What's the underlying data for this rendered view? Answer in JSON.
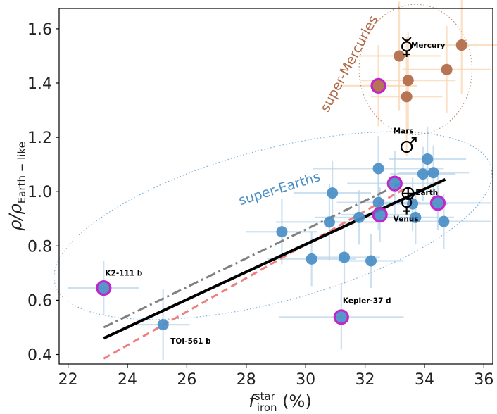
{
  "chart_data": {
    "type": "scatter",
    "xlabel_main": "f",
    "xlabel_sub": "iron",
    "xlabel_sup": "star",
    "xlabel_unit": " (%)",
    "ylabel_main": "ρ/ρ",
    "ylabel_sub": "Earth − like",
    "xlim": [
      21.7,
      36.3
    ],
    "ylim": [
      0.365,
      1.675
    ],
    "xticks": [
      22,
      24,
      26,
      28,
      30,
      32,
      34,
      36
    ],
    "yticks": [
      0.4,
      0.6,
      0.8,
      1.0,
      1.2,
      1.4,
      1.6
    ],
    "xtick_labels": [
      "22",
      "24",
      "26",
      "28",
      "30",
      "32",
      "34",
      "36"
    ],
    "ytick_labels": [
      "0.4",
      "0.6",
      "0.8",
      "1.0",
      "1.2",
      "1.4",
      "1.6"
    ],
    "colors": {
      "super_earth": "#4a8ec6",
      "super_earth_err": "#b8d3ea",
      "super_mercury": "#b06a48",
      "super_mercury_err": "#f9d3ad",
      "highlight": "#c026c8",
      "fit_solid": "#000000",
      "fit_dashdot": "#808080",
      "fit_dashed": "#f08080",
      "ellipse_blue": "#7fb0d8",
      "ellipse_brown": "#c09070"
    },
    "super_earths": [
      {
        "x": 23.2,
        "y": 0.645,
        "xerr": 1.2,
        "yerr": 0.1,
        "highlight": true,
        "label": "K2-111 b"
      },
      {
        "x": 25.2,
        "y": 0.51,
        "xerr": 0.9,
        "yerr": 0.13,
        "highlight": false,
        "label": "TOI-561 b"
      },
      {
        "x": 29.2,
        "y": 0.852,
        "xerr": 1.2,
        "yerr": 0.12,
        "highlight": false,
        "label": ""
      },
      {
        "x": 30.2,
        "y": 0.752,
        "xerr": 1.5,
        "yerr": 0.1,
        "highlight": false,
        "label": ""
      },
      {
        "x": 30.8,
        "y": 0.888,
        "xerr": 1.8,
        "yerr": 0.14,
        "highlight": false,
        "label": ""
      },
      {
        "x": 30.9,
        "y": 0.995,
        "xerr": 1.3,
        "yerr": 0.12,
        "highlight": false,
        "label": ""
      },
      {
        "x": 31.2,
        "y": 0.538,
        "xerr": 2.1,
        "yerr": 0.12,
        "highlight": true,
        "label": "Kepler-37 d"
      },
      {
        "x": 31.3,
        "y": 0.758,
        "xerr": 1.2,
        "yerr": 0.1,
        "highlight": false,
        "label": ""
      },
      {
        "x": 31.8,
        "y": 0.905,
        "xerr": 1.5,
        "yerr": 0.1,
        "highlight": false,
        "label": ""
      },
      {
        "x": 32.2,
        "y": 0.745,
        "xerr": 1.1,
        "yerr": 0.1,
        "highlight": false,
        "label": ""
      },
      {
        "x": 32.45,
        "y": 1.085,
        "xerr": 2.2,
        "yerr": 0.12,
        "highlight": false,
        "label": ""
      },
      {
        "x": 32.45,
        "y": 0.96,
        "xerr": 1.4,
        "yerr": 0.1,
        "highlight": false,
        "label": ""
      },
      {
        "x": 32.5,
        "y": 0.915,
        "xerr": 1.3,
        "yerr": 0.1,
        "highlight": true,
        "label": ""
      },
      {
        "x": 33.0,
        "y": 1.03,
        "xerr": 1.6,
        "yerr": 0.12,
        "highlight": true,
        "label": ""
      },
      {
        "x": 33.6,
        "y": 0.955,
        "xerr": 1.2,
        "yerr": 0.1,
        "highlight": false,
        "label": ""
      },
      {
        "x": 33.7,
        "y": 0.905,
        "xerr": 1.3,
        "yerr": 0.1,
        "highlight": false,
        "label": ""
      },
      {
        "x": 33.95,
        "y": 1.065,
        "xerr": 1.1,
        "yerr": 0.1,
        "highlight": false,
        "label": ""
      },
      {
        "x": 34.1,
        "y": 1.12,
        "xerr": 1.3,
        "yerr": 0.12,
        "highlight": false,
        "label": ""
      },
      {
        "x": 34.3,
        "y": 1.07,
        "xerr": 1.2,
        "yerr": 0.1,
        "highlight": false,
        "label": ""
      },
      {
        "x": 34.45,
        "y": 0.958,
        "xerr": 1.8,
        "yerr": 0.1,
        "highlight": true,
        "label": ""
      },
      {
        "x": 34.65,
        "y": 0.89,
        "xerr": 1.6,
        "yerr": 0.1,
        "highlight": false,
        "label": ""
      }
    ],
    "super_mercuries": [
      {
        "x": 32.45,
        "y": 1.39,
        "xerr": 1.3,
        "yerr": 0.15,
        "highlight": true
      },
      {
        "x": 33.15,
        "y": 1.5,
        "xerr": 1.4,
        "yerr": 0.2,
        "highlight": false
      },
      {
        "x": 33.45,
        "y": 1.41,
        "xerr": 1.6,
        "yerr": 0.18,
        "highlight": false
      },
      {
        "x": 33.4,
        "y": 1.35,
        "xerr": 1.2,
        "yerr": 0.22,
        "highlight": false
      },
      {
        "x": 34.75,
        "y": 1.45,
        "xerr": 1.5,
        "yerr": 0.16,
        "highlight": false
      },
      {
        "x": 35.25,
        "y": 1.54,
        "xerr": 1.3,
        "yerr": 0.18,
        "highlight": false
      }
    ],
    "solar_system": [
      {
        "name": "Mercury",
        "x": 33.4,
        "y": 1.535,
        "symbol": "☿"
      },
      {
        "name": "Mars",
        "x": 33.4,
        "y": 1.165,
        "symbol": "♂"
      },
      {
        "name": "Earth",
        "x": 33.45,
        "y": 0.993,
        "symbol": "⊕"
      },
      {
        "name": "Venus",
        "x": 33.4,
        "y": 0.96,
        "symbol": "♀"
      }
    ],
    "fits": [
      {
        "name": "solid",
        "style": "solid",
        "x": [
          23.2,
          34.7
        ],
        "y": [
          0.46,
          1.045
        ]
      },
      {
        "name": "dashdot",
        "style": "dashdot",
        "x": [
          23.2,
          33.2
        ],
        "y": [
          0.5,
          1.03
        ]
      },
      {
        "name": "dashed",
        "style": "dashed",
        "x": [
          23.2,
          33.4
        ],
        "y": [
          0.385,
          1.015
        ]
      }
    ],
    "regions": [
      {
        "name": "super-Earths",
        "label": "super-Earths",
        "color": "#4a8ec6",
        "cx": 28.9,
        "cy": 0.875,
        "rx": 7.6,
        "ry": 0.28,
        "angle_deg": -15
      },
      {
        "name": "super-Mercuries",
        "label": "super-Mercuries",
        "color": "#b06a48",
        "cx": 33.7,
        "cy": 1.45,
        "rx": 1.9,
        "ry": 0.24,
        "angle_deg": 0
      }
    ],
    "annotations": {
      "k2": "K2-111 b",
      "toi": "TOI-561 b",
      "kepler": "Kepler-37 d",
      "mercury": "Mercury",
      "mars": "Mars",
      "earth": "Earth",
      "venus": "Venus"
    }
  }
}
